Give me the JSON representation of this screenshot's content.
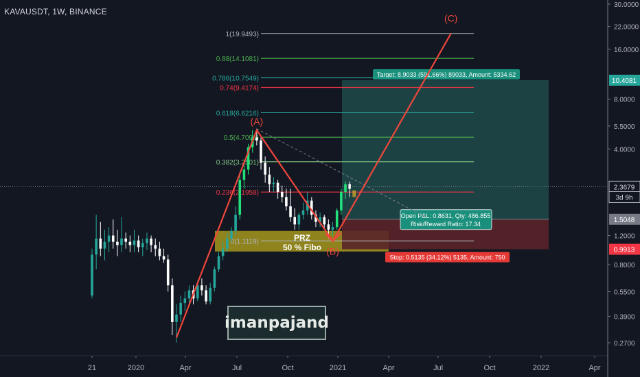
{
  "header": {
    "symbol_line": "KAVAUSDT, 1W, BINANCE"
  },
  "watermark": {
    "text": "imanpajand"
  },
  "colors": {
    "background": "#131722",
    "bull_candle": "#26a69a",
    "bear_candle": "#ffffff",
    "bright_bull": "#22e07a",
    "wave_line": "#f0463c",
    "fib_line": "#b2b5be",
    "target_zone": "#1e4a4a",
    "stop_zone": "#5a2329",
    "prz_zone": "#b8a81c"
  },
  "chart_data": {
    "type": "candlestick",
    "title": "KAVAUSDT, 1W, BINANCE",
    "y_scale": "log",
    "x_tick_labels": [
      "21",
      "2020",
      "Apr",
      "Jul",
      "Oct",
      "2021",
      "Apr",
      "Jul",
      "Oct",
      "2022",
      "Apr"
    ],
    "y_tick_labels": [
      "30.0000",
      "22.0000",
      "16.0000",
      "10.4081",
      "8.0000",
      "5.5000",
      "4.0000",
      "2.3679",
      "1.5048",
      "1.2000",
      "0.9913",
      "0.8000",
      "0.5500",
      "0.3900",
      "0.2700"
    ],
    "price_axis": {
      "ticks": [
        30,
        22,
        16,
        8,
        5.5,
        4,
        1.2,
        0.8,
        0.55,
        0.39,
        0.27
      ],
      "tick_labels": [
        "30.0000",
        "22.0000",
        "16.0000",
        "8.0000",
        "5.5000",
        "4.0000",
        "1.2000",
        "0.8000",
        "0.5500",
        "0.3900",
        "0.2700"
      ],
      "badges": [
        {
          "label": "10.4081",
          "value": 10.4081,
          "color": "#26a69a"
        },
        {
          "label": "2.3679",
          "value": 2.3679,
          "color": "#d1d4dc"
        },
        {
          "label": "3d 9h",
          "value": 2.05,
          "color": "#d1d4dc"
        },
        {
          "label": "1.5048",
          "value": 1.5048,
          "color": "#787b86"
        },
        {
          "label": "0.9913",
          "value": 0.9913,
          "color": "#f23645"
        }
      ]
    },
    "last_price": 2.3679,
    "candles": [
      {
        "t": 0,
        "o": 0.52,
        "h": 1.0,
        "l": 0.5,
        "c": 0.92
      },
      {
        "t": 1,
        "o": 0.92,
        "h": 1.6,
        "l": 0.75,
        "c": 1.15
      },
      {
        "t": 2,
        "o": 1.15,
        "h": 1.45,
        "l": 0.9,
        "c": 1.0
      },
      {
        "t": 3,
        "o": 1.0,
        "h": 1.3,
        "l": 0.85,
        "c": 1.1
      },
      {
        "t": 4,
        "o": 1.1,
        "h": 1.35,
        "l": 0.95,
        "c": 1.2
      },
      {
        "t": 5,
        "o": 1.2,
        "h": 1.5,
        "l": 1.0,
        "c": 1.1
      },
      {
        "t": 6,
        "o": 1.1,
        "h": 1.3,
        "l": 0.9,
        "c": 1.05
      },
      {
        "t": 7,
        "o": 1.05,
        "h": 1.55,
        "l": 0.95,
        "c": 1.15
      },
      {
        "t": 8,
        "o": 1.15,
        "h": 1.25,
        "l": 1.0,
        "c": 1.1
      },
      {
        "t": 9,
        "o": 1.1,
        "h": 1.2,
        "l": 0.95,
        "c": 1.05
      },
      {
        "t": 10,
        "o": 1.05,
        "h": 1.3,
        "l": 0.95,
        "c": 1.12
      },
      {
        "t": 11,
        "o": 1.12,
        "h": 1.2,
        "l": 0.95,
        "c": 1.02
      },
      {
        "t": 12,
        "o": 1.02,
        "h": 1.15,
        "l": 0.9,
        "c": 1.08
      },
      {
        "t": 13,
        "o": 1.08,
        "h": 1.25,
        "l": 0.98,
        "c": 1.15
      },
      {
        "t": 14,
        "o": 1.15,
        "h": 1.2,
        "l": 0.95,
        "c": 1.05
      },
      {
        "t": 15,
        "o": 1.05,
        "h": 1.15,
        "l": 0.9,
        "c": 1.0
      },
      {
        "t": 16,
        "o": 1.0,
        "h": 1.1,
        "l": 0.85,
        "c": 0.9
      },
      {
        "t": 17,
        "o": 0.9,
        "h": 1.0,
        "l": 0.82,
        "c": 0.86
      },
      {
        "t": 18,
        "o": 0.86,
        "h": 0.92,
        "l": 0.55,
        "c": 0.6
      },
      {
        "t": 19,
        "o": 0.6,
        "h": 0.66,
        "l": 0.3,
        "c": 0.36
      },
      {
        "t": 20,
        "o": 0.36,
        "h": 0.46,
        "l": 0.27,
        "c": 0.4
      },
      {
        "t": 21,
        "o": 0.4,
        "h": 0.52,
        "l": 0.36,
        "c": 0.47
      },
      {
        "t": 22,
        "o": 0.47,
        "h": 0.55,
        "l": 0.42,
        "c": 0.5
      },
      {
        "t": 23,
        "o": 0.5,
        "h": 0.6,
        "l": 0.45,
        "c": 0.56
      },
      {
        "t": 24,
        "o": 0.56,
        "h": 0.6,
        "l": 0.46,
        "c": 0.5
      },
      {
        "t": 25,
        "o": 0.5,
        "h": 0.64,
        "l": 0.48,
        "c": 0.6
      },
      {
        "t": 26,
        "o": 0.6,
        "h": 0.66,
        "l": 0.52,
        "c": 0.56
      },
      {
        "t": 27,
        "o": 0.56,
        "h": 0.6,
        "l": 0.46,
        "c": 0.48
      },
      {
        "t": 28,
        "o": 0.48,
        "h": 0.62,
        "l": 0.46,
        "c": 0.58
      },
      {
        "t": 29,
        "o": 0.58,
        "h": 0.78,
        "l": 0.55,
        "c": 0.75
      },
      {
        "t": 30,
        "o": 0.75,
        "h": 0.95,
        "l": 0.72,
        "c": 0.9
      },
      {
        "t": 31,
        "o": 0.9,
        "h": 1.1,
        "l": 0.85,
        "c": 1.0
      },
      {
        "t": 32,
        "o": 1.0,
        "h": 1.25,
        "l": 0.95,
        "c": 1.15
      },
      {
        "t": 33,
        "o": 1.15,
        "h": 1.35,
        "l": 1.1,
        "c": 1.28
      },
      {
        "t": 34,
        "o": 1.28,
        "h": 1.8,
        "l": 1.2,
        "c": 1.6
      },
      {
        "t": 35,
        "o": 1.6,
        "h": 2.9,
        "l": 1.5,
        "c": 2.6
      },
      {
        "t": 36,
        "o": 2.6,
        "h": 3.3,
        "l": 2.3,
        "c": 3.0
      },
      {
        "t": 37,
        "o": 3.0,
        "h": 4.3,
        "l": 2.8,
        "c": 4.1
      },
      {
        "t": 38,
        "o": 4.1,
        "h": 5.2,
        "l": 3.8,
        "c": 4.7
      },
      {
        "t": 39,
        "o": 4.7,
        "h": 5.3,
        "l": 4.2,
        "c": 4.5
      },
      {
        "t": 40,
        "o": 4.5,
        "h": 4.7,
        "l": 3.0,
        "c": 3.3
      },
      {
        "t": 41,
        "o": 3.3,
        "h": 3.6,
        "l": 2.5,
        "c": 2.8
      },
      {
        "t": 42,
        "o": 2.8,
        "h": 3.1,
        "l": 2.2,
        "c": 2.45
      },
      {
        "t": 43,
        "o": 2.45,
        "h": 2.7,
        "l": 2.2,
        "c": 2.5
      },
      {
        "t": 44,
        "o": 2.5,
        "h": 2.6,
        "l": 2.0,
        "c": 2.2
      },
      {
        "t": 45,
        "o": 2.2,
        "h": 2.4,
        "l": 1.9,
        "c": 2.05
      },
      {
        "t": 46,
        "o": 2.05,
        "h": 2.3,
        "l": 1.7,
        "c": 1.8
      },
      {
        "t": 47,
        "o": 1.8,
        "h": 2.3,
        "l": 1.45,
        "c": 1.55
      },
      {
        "t": 48,
        "o": 1.55,
        "h": 1.75,
        "l": 1.3,
        "c": 1.4
      },
      {
        "t": 49,
        "o": 1.4,
        "h": 1.65,
        "l": 1.3,
        "c": 1.6
      },
      {
        "t": 50,
        "o": 1.6,
        "h": 1.9,
        "l": 1.5,
        "c": 1.7
      },
      {
        "t": 51,
        "o": 1.7,
        "h": 2.2,
        "l": 1.6,
        "c": 1.95
      },
      {
        "t": 52,
        "o": 1.95,
        "h": 2.05,
        "l": 1.5,
        "c": 1.6
      },
      {
        "t": 53,
        "o": 1.6,
        "h": 1.7,
        "l": 1.35,
        "c": 1.45
      },
      {
        "t": 54,
        "o": 1.45,
        "h": 1.65,
        "l": 1.35,
        "c": 1.55
      },
      {
        "t": 55,
        "o": 1.55,
        "h": 1.6,
        "l": 1.3,
        "c": 1.4
      },
      {
        "t": 56,
        "o": 1.4,
        "h": 1.5,
        "l": 1.15,
        "c": 1.3
      },
      {
        "t": 57,
        "o": 1.3,
        "h": 1.45,
        "l": 1.2,
        "c": 1.35
      },
      {
        "t": 58,
        "o": 1.35,
        "h": 1.75,
        "l": 1.3,
        "c": 1.7
      },
      {
        "t": 59,
        "o": 1.7,
        "h": 2.3,
        "l": 1.6,
        "c": 2.2
      },
      {
        "t": 60,
        "o": 2.2,
        "h": 2.55,
        "l": 2.0,
        "c": 2.45
      },
      {
        "t": 61,
        "o": 2.45,
        "h": 2.55,
        "l": 2.05,
        "c": 2.3
      }
    ],
    "fib_levels": [
      {
        "label": "1(19.9493)",
        "ratio": 1,
        "value": 19.9493,
        "color": "#b2b5be"
      },
      {
        "label": "0.88(14.1081)",
        "ratio": 0.88,
        "value": 14.1081,
        "color": "#4caf50"
      },
      {
        "label": "0.786(10.7549)",
        "ratio": 0.786,
        "value": 10.7549,
        "color": "#26a69a"
      },
      {
        "label": "0.74(9.4174)",
        "ratio": 0.74,
        "value": 9.4174,
        "color": "#f23645"
      },
      {
        "label": "0.618(6.6216)",
        "ratio": 0.618,
        "value": 6.6216,
        "color": "#26a69a"
      },
      {
        "label": "0.5(4.7099)",
        "ratio": 0.5,
        "value": 4.7099,
        "color": "#4caf50"
      },
      {
        "label": "0.382(3.3501)",
        "ratio": 0.382,
        "value": 3.3501,
        "color": "#81c784"
      },
      {
        "label": "0.236(2.1958)",
        "ratio": 0.236,
        "value": 2.1958,
        "color": "#f23645"
      },
      {
        "label": "0(1.1119)",
        "ratio": 0,
        "value": 1.1119,
        "color": "#b2b5be"
      }
    ],
    "wave_labels": [
      {
        "label": "(A)",
        "t": 39,
        "value": 5.6
      },
      {
        "label": "(B)",
        "t": 57,
        "value": 0.92
      },
      {
        "label": "(C)",
        "t": 85,
        "value": 23.5
      }
    ],
    "wave_path": [
      {
        "t": 20,
        "value": 0.29
      },
      {
        "t": 39,
        "value": 5.2
      },
      {
        "t": 57,
        "value": 1.11
      },
      {
        "t": 85,
        "value": 19.95
      }
    ],
    "position": {
      "entry": 1.5048,
      "target": 10.4081,
      "stop": 0.9913,
      "target_label": "Target: 8.9033 (591.66%) 89033, Amount: 5334.62",
      "stop_label": "Stop: 0.5135 (34.12%) 5135, Amount: 750",
      "pnl_label": "Open P&L: 0.8631, Qty: 486.855",
      "rr_label": "Risk/Reward Ratio: 17.34"
    },
    "prz": {
      "line1": "PRZ",
      "line2": "50 % Fibo",
      "top": 1.28,
      "bottom": 0.96
    }
  }
}
